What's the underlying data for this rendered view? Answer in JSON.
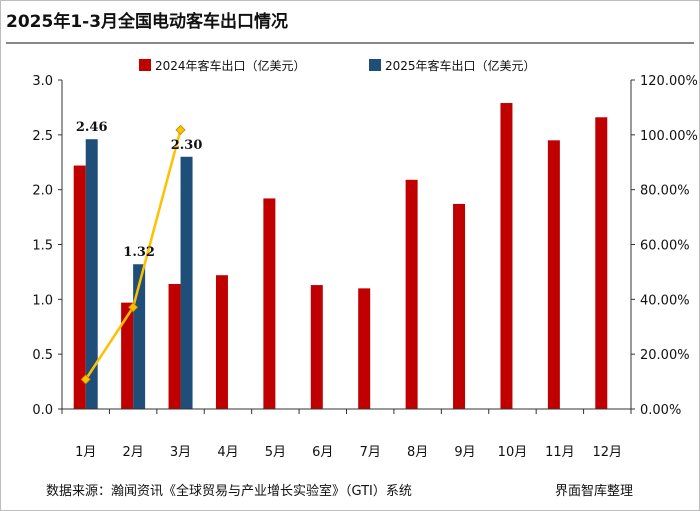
{
  "header": {
    "title": "2025年1-3月全国电动客车出口情况"
  },
  "footer": {
    "source": "数据来源：瀚闻资讯《全球贸易与产业增长实验室》（GTI）系统",
    "brand": "界面智库整理"
  },
  "chart_data": {
    "type": "bar",
    "categories": [
      "1月",
      "2月",
      "3月",
      "4月",
      "5月",
      "6月",
      "7月",
      "8月",
      "9月",
      "10月",
      "11月",
      "12月"
    ],
    "series": [
      {
        "name": "2024年客车出口（亿美元）",
        "kind": "bar",
        "axis": "left",
        "color": "#c00000",
        "values": [
          2.22,
          0.97,
          1.14,
          1.22,
          1.92,
          1.13,
          1.1,
          2.09,
          1.87,
          2.79,
          2.45,
          2.66
        ]
      },
      {
        "name": "2025年客车出口（亿美元）",
        "kind": "bar",
        "axis": "left",
        "color": "#1f4e79",
        "values": [
          2.46,
          1.32,
          2.3,
          null,
          null,
          null,
          null,
          null,
          null,
          null,
          null,
          null
        ],
        "data_labels": [
          "2.46",
          "1.32",
          "2.30"
        ]
      },
      {
        "kind": "line",
        "axis": "right",
        "color": "#ffc000",
        "marker_color": "#ffc000",
        "values": [
          0.108,
          0.371,
          1.018,
          null,
          null,
          null,
          null,
          null,
          null,
          null,
          null,
          null
        ]
      }
    ],
    "y_left": {
      "min": 0,
      "max": 3.0,
      "ticks": [
        "0.0",
        "0.5",
        "1.0",
        "1.5",
        "2.0",
        "2.5",
        "3.0"
      ]
    },
    "y_right": {
      "min": 0,
      "max": 1.2,
      "ticks": [
        "0.00%",
        "20.00%",
        "40.00%",
        "60.00%",
        "80.00%",
        "100.00%",
        "120.00%"
      ]
    },
    "legend_position": "top",
    "grid": false
  }
}
